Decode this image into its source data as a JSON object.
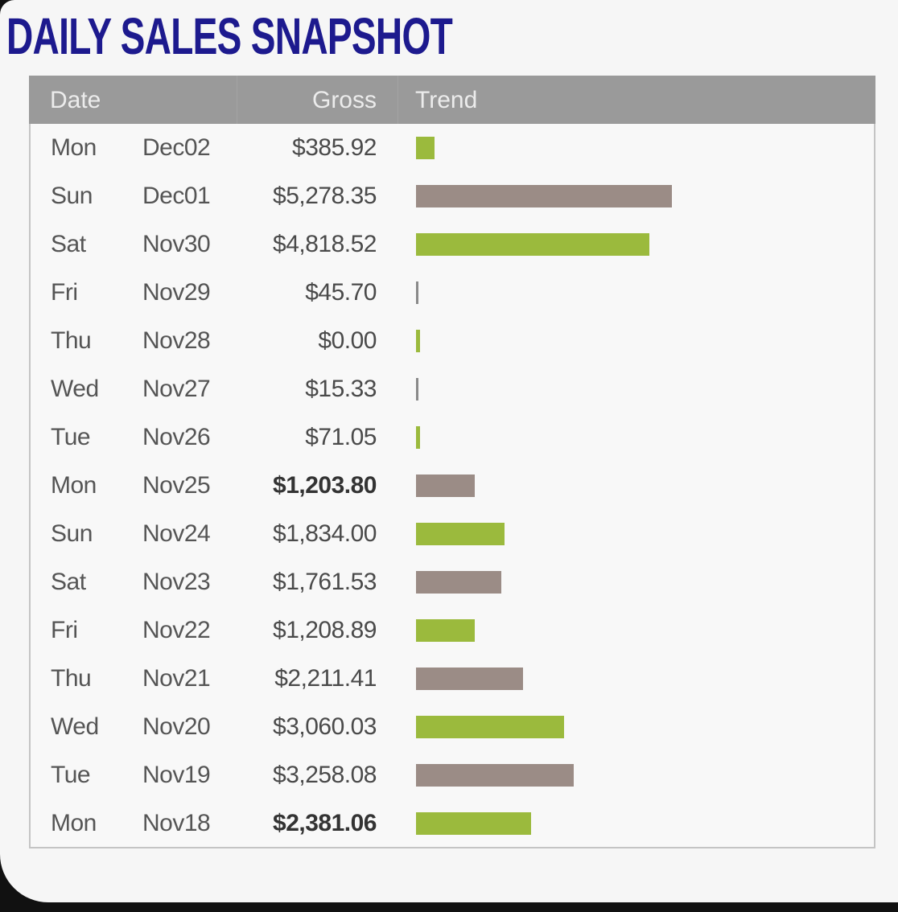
{
  "title": "DAILY SALES SNAPSHOT",
  "columns": {
    "date": "Date",
    "gross": "Gross",
    "trend": "Trend"
  },
  "colors": {
    "green": "#9bba3d",
    "taupe": "#9b8c86",
    "thin": "#8a8a8a",
    "title": "#1d1a8e",
    "header": "#9a9a9a"
  },
  "chart_data": {
    "type": "bar",
    "title": "DAILY SALES SNAPSHOT",
    "orientation": "horizontal",
    "rows": [
      {
        "day": "Mon",
        "date": "Dec02",
        "gross": "$385.92",
        "value": 385.92,
        "color": "green",
        "bold": false
      },
      {
        "day": "Sun",
        "date": "Dec01",
        "gross": "$5,278.35",
        "value": 5278.35,
        "color": "taupe",
        "bold": false
      },
      {
        "day": "Sat",
        "date": "Nov30",
        "gross": "$4,818.52",
        "value": 4818.52,
        "color": "green",
        "bold": false
      },
      {
        "day": "Fri",
        "date": "Nov29",
        "gross": "$45.70",
        "value": 45.7,
        "color": "thin",
        "bold": false
      },
      {
        "day": "Thu",
        "date": "Nov28",
        "gross": "$0.00",
        "value": 0.0,
        "color": "green",
        "bold": false
      },
      {
        "day": "Wed",
        "date": "Nov27",
        "gross": "$15.33",
        "value": 15.33,
        "color": "thin",
        "bold": false
      },
      {
        "day": "Tue",
        "date": "Nov26",
        "gross": "$71.05",
        "value": 71.05,
        "color": "green",
        "bold": false
      },
      {
        "day": "Mon",
        "date": "Nov25",
        "gross": "$1,203.80",
        "value": 1203.8,
        "color": "taupe",
        "bold": true
      },
      {
        "day": "Sun",
        "date": "Nov24",
        "gross": "$1,834.00",
        "value": 1834.0,
        "color": "green",
        "bold": false
      },
      {
        "day": "Sat",
        "date": "Nov23",
        "gross": "$1,761.53",
        "value": 1761.53,
        "color": "taupe",
        "bold": false
      },
      {
        "day": "Fri",
        "date": "Nov22",
        "gross": "$1,208.89",
        "value": 1208.89,
        "color": "green",
        "bold": false
      },
      {
        "day": "Thu",
        "date": "Nov21",
        "gross": "$2,211.41",
        "value": 2211.41,
        "color": "taupe",
        "bold": false
      },
      {
        "day": "Wed",
        "date": "Nov20",
        "gross": "$3,060.03",
        "value": 3060.03,
        "color": "green",
        "bold": false
      },
      {
        "day": "Tue",
        "date": "Nov19",
        "gross": "$3,258.08",
        "value": 3258.08,
        "color": "taupe",
        "bold": false
      },
      {
        "day": "Mon",
        "date": "Nov18",
        "gross": "$2,381.06",
        "value": 2381.06,
        "color": "green",
        "bold": true
      }
    ],
    "xlim": [
      0,
      5278.35
    ]
  }
}
